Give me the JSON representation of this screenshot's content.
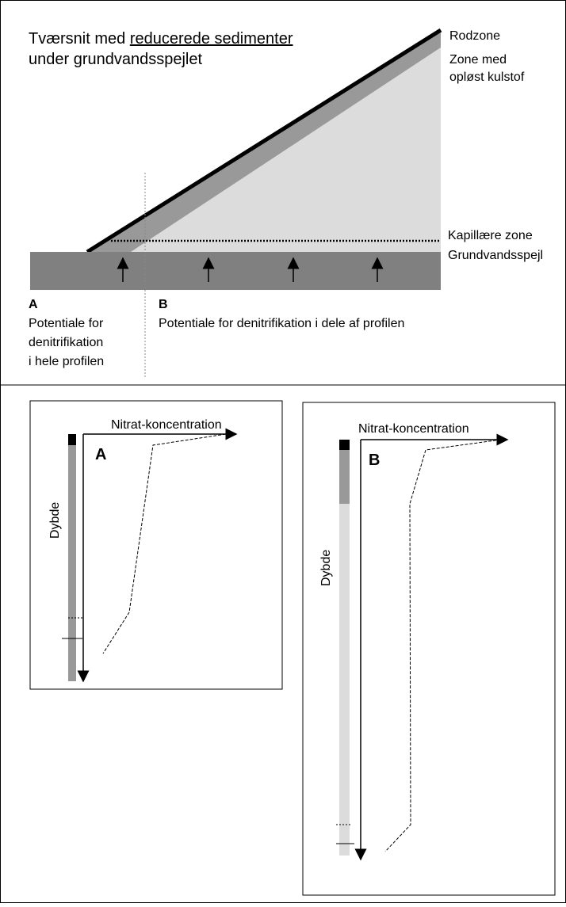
{
  "header": {
    "title_plain": "Tværsnit med",
    "title_underlined": "reducerede sedimenter",
    "title_line2": "under grundvandsspejlet"
  },
  "zones": {
    "root": "Rodzone",
    "carbon_1": "Zone med",
    "carbon_2": "opløst kulstof",
    "capillary": "Kapillære zone",
    "groundwater": "Grundvandsspejl"
  },
  "sites": {
    "a_label": "A",
    "a_lines": [
      "Potentiale for",
      "denitrifikation",
      "i hele profilen"
    ],
    "b_label": "B",
    "b_text": "Potentiale for denitrifikation i dele af profilen"
  },
  "profiles": [
    {
      "label": "A",
      "x_axis": "Nitrat-koncentration",
      "y_axis": "Dybde"
    },
    {
      "label": "B",
      "x_axis": "Nitrat-koncentration",
      "y_axis": "Dybde"
    }
  ]
}
